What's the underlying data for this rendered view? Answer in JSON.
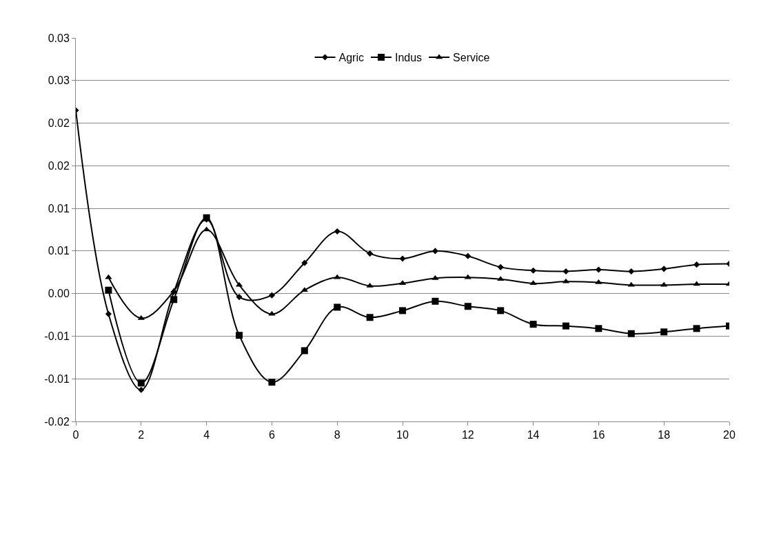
{
  "chart_data": {
    "type": "line",
    "x": [
      0,
      1,
      2,
      3,
      4,
      5,
      6,
      7,
      8,
      9,
      10,
      11,
      12,
      13,
      14,
      15,
      16,
      17,
      18,
      19,
      20
    ],
    "xlim": [
      0,
      20
    ],
    "xticks": [
      0,
      2,
      4,
      6,
      8,
      10,
      12,
      14,
      16,
      18,
      20
    ],
    "ylim": [
      -0.015,
      0.03
    ],
    "yticks": [
      {
        "value": -0.015,
        "label": "-0.02"
      },
      {
        "value": -0.01,
        "label": "-0.01"
      },
      {
        "value": -0.005,
        "label": "-0.01"
      },
      {
        "value": 0,
        "label": "0.00"
      },
      {
        "value": 0.005,
        "label": "0.01"
      },
      {
        "value": 0.01,
        "label": "0.01"
      },
      {
        "value": 0.015,
        "label": "0.02"
      },
      {
        "value": 0.02,
        "label": "0.02"
      },
      {
        "value": 0.025,
        "label": "0.03"
      },
      {
        "value": 0.03,
        "label": "0.03"
      }
    ],
    "grid": "y",
    "legend": "top",
    "line_style": "solid",
    "series": [
      {
        "name": "Agric",
        "color": "#000000",
        "marker": "diamond",
        "values": [
          0.0215,
          -0.0024,
          -0.0113,
          0.0002,
          0.0087,
          -0.0004,
          -0.0002,
          0.0036,
          0.0073,
          0.0047,
          0.0041,
          0.005,
          0.0044,
          0.0031,
          0.0027,
          0.0026,
          0.0028,
          0.0026,
          0.0029,
          0.0034,
          0.0035
        ]
      },
      {
        "name": "Indus",
        "color": "#000000",
        "marker": "square",
        "x": [
          1,
          2,
          3,
          4,
          5,
          6,
          7,
          8,
          9,
          10,
          11,
          12,
          13,
          14,
          15,
          16,
          17,
          18,
          19,
          20
        ],
        "values": [
          0.0004,
          -0.0105,
          -0.0007,
          0.0089,
          -0.0049,
          -0.0104,
          -0.0067,
          -0.0016,
          -0.0028,
          -0.002,
          -0.0009,
          -0.0015,
          -0.002,
          -0.0036,
          -0.0038,
          -0.0041,
          -0.0047,
          -0.0045,
          -0.0041,
          -0.0038
        ]
      },
      {
        "name": "Service",
        "color": "#000000",
        "marker": "triangle",
        "x": [
          1,
          2,
          3,
          4,
          5,
          6,
          7,
          8,
          9,
          10,
          11,
          12,
          13,
          14,
          15,
          16,
          17,
          18,
          19,
          20
        ],
        "values": [
          0.0019,
          -0.0029,
          0.0003,
          0.0075,
          0.001,
          -0.0024,
          0.0004,
          0.0019,
          0.0009,
          0.0012,
          0.0018,
          0.0019,
          0.0017,
          0.0012,
          0.0014,
          0.0013,
          0.001,
          0.001,
          0.0011,
          0.0011
        ]
      }
    ]
  }
}
